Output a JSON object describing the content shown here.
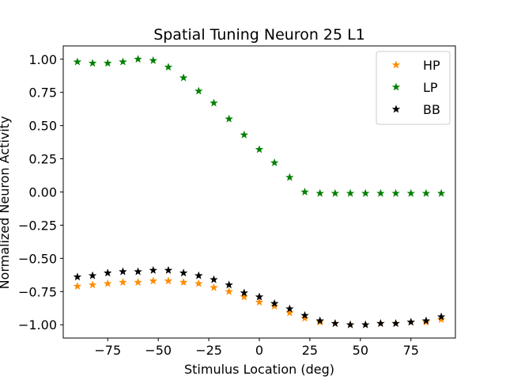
{
  "chart_data": {
    "type": "scatter",
    "title": "Spatial Tuning Neuron 25 L1",
    "xlabel": "Stimulus Location (deg)",
    "ylabel": "Normalized Neuron Activity",
    "xlim": [
      -97,
      97
    ],
    "ylim": [
      -1.1,
      1.1
    ],
    "xticks": [
      -75,
      -50,
      -25,
      0,
      25,
      50,
      75
    ],
    "xtick_labels": [
      "−75",
      "−50",
      "−25",
      "0",
      "25",
      "50",
      "75"
    ],
    "yticks": [
      1.0,
      0.75,
      0.5,
      0.25,
      0.0,
      -0.25,
      -0.5,
      -0.75,
      -1.0
    ],
    "ytick_labels": [
      "1.00",
      "0.75",
      "0.50",
      "0.25",
      "0.00",
      "−0.25",
      "−0.50",
      "−0.75",
      "−1.00"
    ],
    "grid": false,
    "legend_position": "top-right",
    "marker": "star",
    "x": [
      -90,
      -82.5,
      -75,
      -67.5,
      -60,
      -52.5,
      -45,
      -37.5,
      -30,
      -22.5,
      -15,
      -7.5,
      0,
      7.5,
      15,
      22.5,
      30,
      37.5,
      45,
      52.5,
      60,
      67.5,
      75,
      82.5,
      90
    ],
    "series": [
      {
        "name": "HP",
        "color": "#ff8c00",
        "values": [
          -0.71,
          -0.7,
          -0.69,
          -0.68,
          -0.68,
          -0.67,
          -0.67,
          -0.68,
          -0.69,
          -0.72,
          -0.75,
          -0.79,
          -0.83,
          -0.86,
          -0.91,
          -0.95,
          -0.98,
          -0.99,
          -1.0,
          -1.0,
          -0.99,
          -0.99,
          -0.98,
          -0.98,
          -0.96
        ]
      },
      {
        "name": "LP",
        "color": "#008000",
        "values": [
          0.98,
          0.97,
          0.97,
          0.98,
          1.0,
          0.99,
          0.94,
          0.86,
          0.76,
          0.67,
          0.55,
          0.43,
          0.32,
          0.22,
          0.11,
          0.0,
          -0.01,
          -0.01,
          -0.01,
          -0.01,
          -0.01,
          -0.01,
          -0.01,
          -0.01,
          -0.01
        ]
      },
      {
        "name": "BB",
        "color": "#000000",
        "values": [
          -0.64,
          -0.63,
          -0.61,
          -0.6,
          -0.6,
          -0.59,
          -0.59,
          -0.61,
          -0.63,
          -0.66,
          -0.7,
          -0.76,
          -0.79,
          -0.84,
          -0.88,
          -0.93,
          -0.97,
          -0.99,
          -1.0,
          -1.0,
          -0.99,
          -0.99,
          -0.98,
          -0.97,
          -0.94
        ]
      }
    ]
  }
}
